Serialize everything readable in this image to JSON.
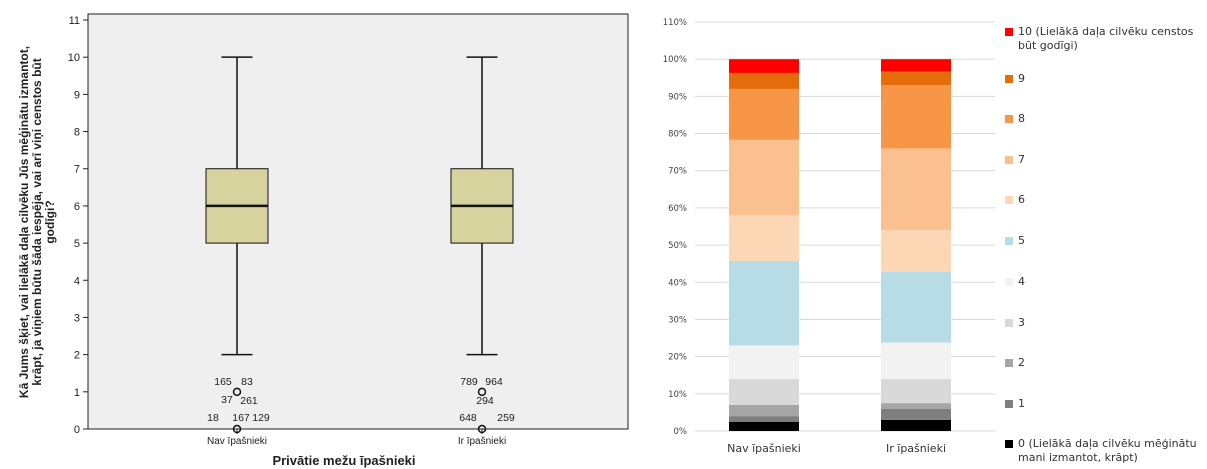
{
  "chart_data": [
    {
      "type": "boxplot",
      "xlabel": "Privātie mežu īpašnieki",
      "ylabel": "Kā Jums šķiet, vai lielākā daļa cilvēku Jūs mēģinātu izmantot, krāpt, ja viņiem būtu šāda iespēja, vai arī viņi censtos būt godīgi?",
      "ylim": [
        0,
        11
      ],
      "yticks": [
        "0",
        "1",
        "2",
        "3",
        "4",
        "5",
        "6",
        "7",
        "8",
        "9",
        "10",
        "11"
      ],
      "grid": false,
      "background": "#efefef",
      "box_color": "#d6d39e",
      "categories": [
        "Nav īpašnieki",
        "Ir īpašnieki"
      ],
      "boxes": [
        {
          "category": "Nav īpašnieki",
          "whisker_low": 2,
          "q1": 5,
          "median": 6,
          "q3": 7,
          "whisker_high": 10,
          "outliers": [
            1,
            0
          ],
          "outlier_labels": [
            {
              "text": "165",
              "y": 1
            },
            {
              "text": "83",
              "y": 1
            },
            {
              "text": "37",
              "y": 1
            },
            {
              "text": "261",
              "y": 1
            },
            {
              "text": "18",
              "y": 0
            },
            {
              "text": "167",
              "y": 0
            },
            {
              "text": "129",
              "y": 0
            }
          ]
        },
        {
          "category": "Ir īpašnieki",
          "whisker_low": 2,
          "q1": 5,
          "median": 6,
          "q3": 7,
          "whisker_high": 10,
          "outliers": [
            1,
            0
          ],
          "outlier_labels": [
            {
              "text": "789",
              "y": 1
            },
            {
              "text": "964",
              "y": 1
            },
            {
              "text": "294",
              "y": 1
            },
            {
              "text": "648",
              "y": 0
            },
            {
              "text": "259",
              "y": 0
            }
          ]
        }
      ]
    },
    {
      "type": "bar",
      "stacked": true,
      "categories": [
        "Nav īpašnieki",
        "Ir īpašnieki"
      ],
      "ylim": [
        0,
        110
      ],
      "yticks": [
        "0%",
        "10%",
        "20%",
        "30%",
        "40%",
        "50%",
        "60%",
        "70%",
        "80%",
        "90%",
        "100%",
        "110%"
      ],
      "grid": true,
      "legend_position": "right",
      "series": [
        {
          "name": "0 (Lielākā daļa cilvēku mēģinātu mani izmantot, krāpt)",
          "color": "#000000",
          "values": [
            2.5,
            3.0
          ]
        },
        {
          "name": "1",
          "color": "#7f7f7f",
          "values": [
            1.5,
            3.0
          ]
        },
        {
          "name": "2",
          "color": "#a6a6a6",
          "values": [
            3.0,
            1.5
          ]
        },
        {
          "name": "3",
          "color": "#d9d9d9",
          "values": [
            7.0,
            6.5
          ]
        },
        {
          "name": "4",
          "color": "#f2f2f2",
          "values": [
            9.0,
            9.8
          ]
        },
        {
          "name": "5",
          "color": "#b8dce6",
          "values": [
            22.8,
            19.0
          ]
        },
        {
          "name": "6",
          "color": "#fbd7b6",
          "values": [
            12.2,
            11.2
          ]
        },
        {
          "name": "7",
          "color": "#fac090",
          "values": [
            20.3,
            22.0
          ]
        },
        {
          "name": "8",
          "color": "#f79646",
          "values": [
            13.7,
            17.0
          ]
        },
        {
          "name": "9",
          "color": "#e46c0a",
          "values": [
            4.3,
            3.7
          ]
        },
        {
          "name": "10 (Lielākā daļa cilvēku censtos būt godīgi)",
          "color": "#ff0000",
          "values": [
            3.7,
            3.3
          ]
        }
      ]
    }
  ]
}
